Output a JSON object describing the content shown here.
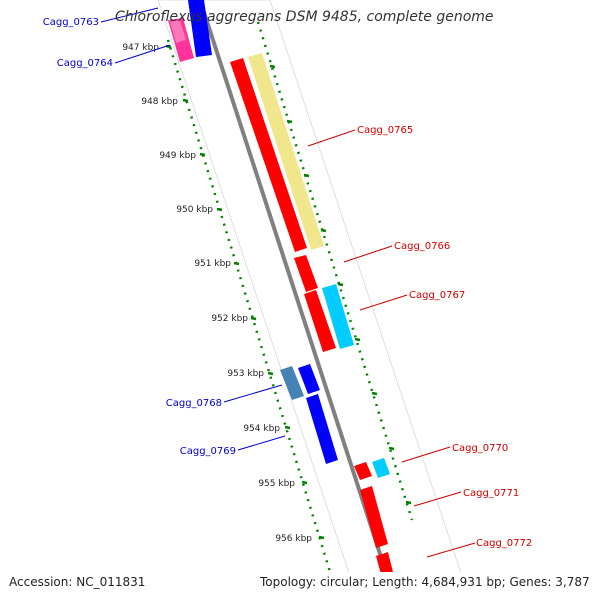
{
  "title": "Chloroflexus aggregans DSM 9485, complete genome",
  "footer": {
    "accession": "Accession: NC_011831",
    "summary": "Topology: circular; Length: 4,684,931 bp; Genes: 3,787"
  },
  "colors": {
    "forward_red": "#ff0000",
    "reverse_blue": "#0000ff",
    "steel_blue": "#4682b4",
    "cyan": "#00ccff",
    "pink": "#ff3399",
    "khaki": "#f0e68c",
    "dna_line": "#888888",
    "ruler": "#008000",
    "label_forward": "#cc0000",
    "label_reverse": "#0000cc"
  },
  "ruler_labels": [
    "947 kbp",
    "948 kbp",
    "949 kbp",
    "950 kbp",
    "951 kbp",
    "952 kbp",
    "953 kbp",
    "954 kbp",
    "955 kbp",
    "956 kbp"
  ],
  "genes": [
    {
      "name": "Cagg_0763",
      "strand": "reverse"
    },
    {
      "name": "Cagg_0764",
      "strand": "reverse"
    },
    {
      "name": "Cagg_0765",
      "strand": "forward"
    },
    {
      "name": "Cagg_0766",
      "strand": "forward"
    },
    {
      "name": "Cagg_0767",
      "strand": "forward"
    },
    {
      "name": "Cagg_0768",
      "strand": "reverse"
    },
    {
      "name": "Cagg_0769",
      "strand": "reverse"
    },
    {
      "name": "Cagg_0770",
      "strand": "forward"
    },
    {
      "name": "Cagg_0771",
      "strand": "forward"
    },
    {
      "name": "Cagg_0772",
      "strand": "forward"
    }
  ]
}
